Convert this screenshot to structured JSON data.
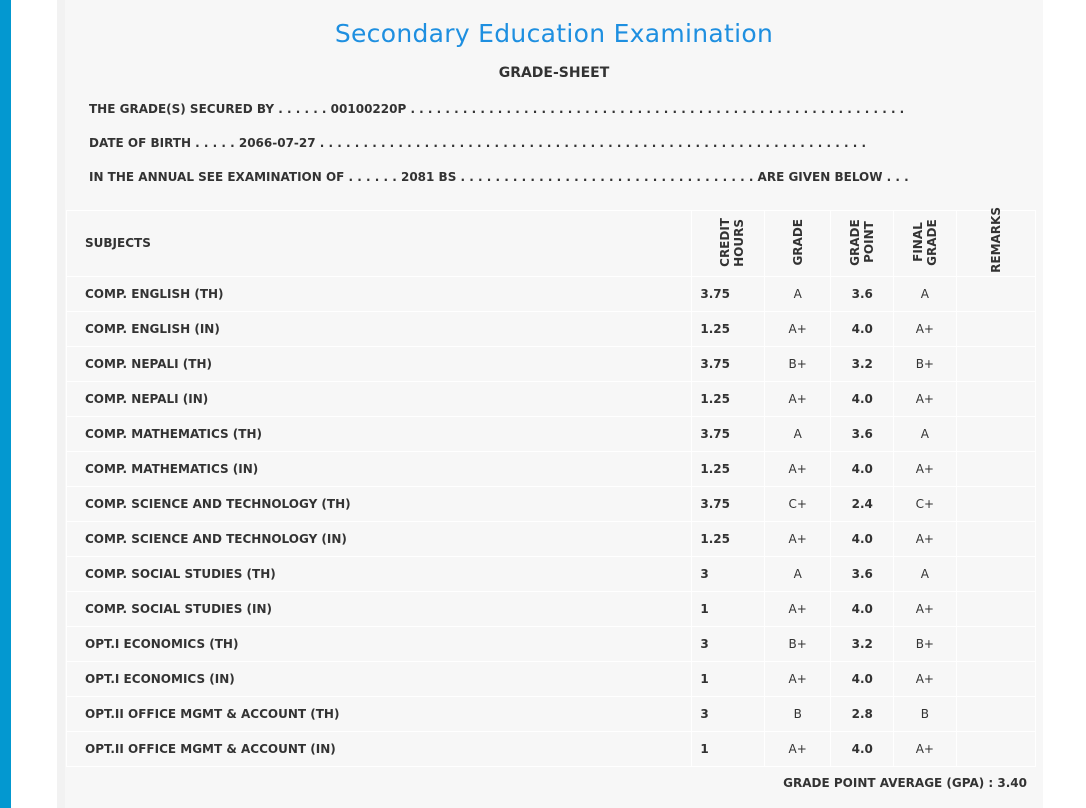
{
  "title": "Secondary Education Examination",
  "subtitle": "GRADE-SHEET",
  "info": {
    "line1": "THE GRADE(S) SECURED BY . . . . . . 00100220P . . . . . . . . . . . . . . . . . . . . . . . . . . . . . . . . . . . . . . . . . . . . . . . . . . . . . . . . .",
    "line2": "DATE OF BIRTH . . . . . 2066-07-27 . . . . . . . . . . . . . . . . . . . . . . . . . . . . . . . . . . . . . . . . . . . . . . . . . . . . . . . . . . . . . . .",
    "line3": "IN THE ANNUAL SEE EXAMINATION OF . . . . . . 2081 BS . . . . . . . . . . . . . . . . . . . . . . . . . . . . . . . . . . ARE GIVEN BELOW . . ."
  },
  "headers": {
    "subjects": "SUBJECTS",
    "credit_hours": "CREDIT HOURS",
    "grade": "GRADE",
    "grade_point": "GRADE POINT",
    "final_grade": "FINAL GRADE",
    "remarks": "REMARKS"
  },
  "rows": [
    {
      "subject": "COMP. ENGLISH (TH)",
      "ch": "3.75",
      "grade": "A",
      "gp": "3.6",
      "final": "A"
    },
    {
      "subject": "COMP. ENGLISH (IN)",
      "ch": "1.25",
      "grade": "A+",
      "gp": "4.0",
      "final": "A+"
    },
    {
      "subject": "COMP. NEPALI (TH)",
      "ch": "3.75",
      "grade": "B+",
      "gp": "3.2",
      "final": "B+"
    },
    {
      "subject": "COMP. NEPALI (IN)",
      "ch": "1.25",
      "grade": "A+",
      "gp": "4.0",
      "final": "A+"
    },
    {
      "subject": "COMP. MATHEMATICS (TH)",
      "ch": "3.75",
      "grade": "A",
      "gp": "3.6",
      "final": "A"
    },
    {
      "subject": "COMP. MATHEMATICS (IN)",
      "ch": "1.25",
      "grade": "A+",
      "gp": "4.0",
      "final": "A+"
    },
    {
      "subject": "COMP. SCIENCE AND TECHNOLOGY (TH)",
      "ch": "3.75",
      "grade": "C+",
      "gp": "2.4",
      "final": "C+"
    },
    {
      "subject": "COMP. SCIENCE AND TECHNOLOGY (IN)",
      "ch": "1.25",
      "grade": "A+",
      "gp": "4.0",
      "final": "A+"
    },
    {
      "subject": "COMP. SOCIAL STUDIES (TH)",
      "ch": "3",
      "grade": "A",
      "gp": "3.6",
      "final": "A"
    },
    {
      "subject": "COMP. SOCIAL STUDIES (IN)",
      "ch": "1",
      "grade": "A+",
      "gp": "4.0",
      "final": "A+"
    },
    {
      "subject": "OPT.I ECONOMICS (TH)",
      "ch": "3",
      "grade": "B+",
      "gp": "3.2",
      "final": "B+"
    },
    {
      "subject": "OPT.I ECONOMICS (IN)",
      "ch": "1",
      "grade": "A+",
      "gp": "4.0",
      "final": "A+"
    },
    {
      "subject": "OPT.II OFFICE MGMT & ACCOUNT (TH)",
      "ch": "3",
      "grade": "B",
      "gp": "2.8",
      "final": "B"
    },
    {
      "subject": "OPT.II OFFICE MGMT & ACCOUNT (IN)",
      "ch": "1",
      "grade": "A+",
      "gp": "4.0",
      "final": "A+"
    }
  ],
  "gpa": "GRADE POINT AVERAGE (GPA) : 3.40"
}
